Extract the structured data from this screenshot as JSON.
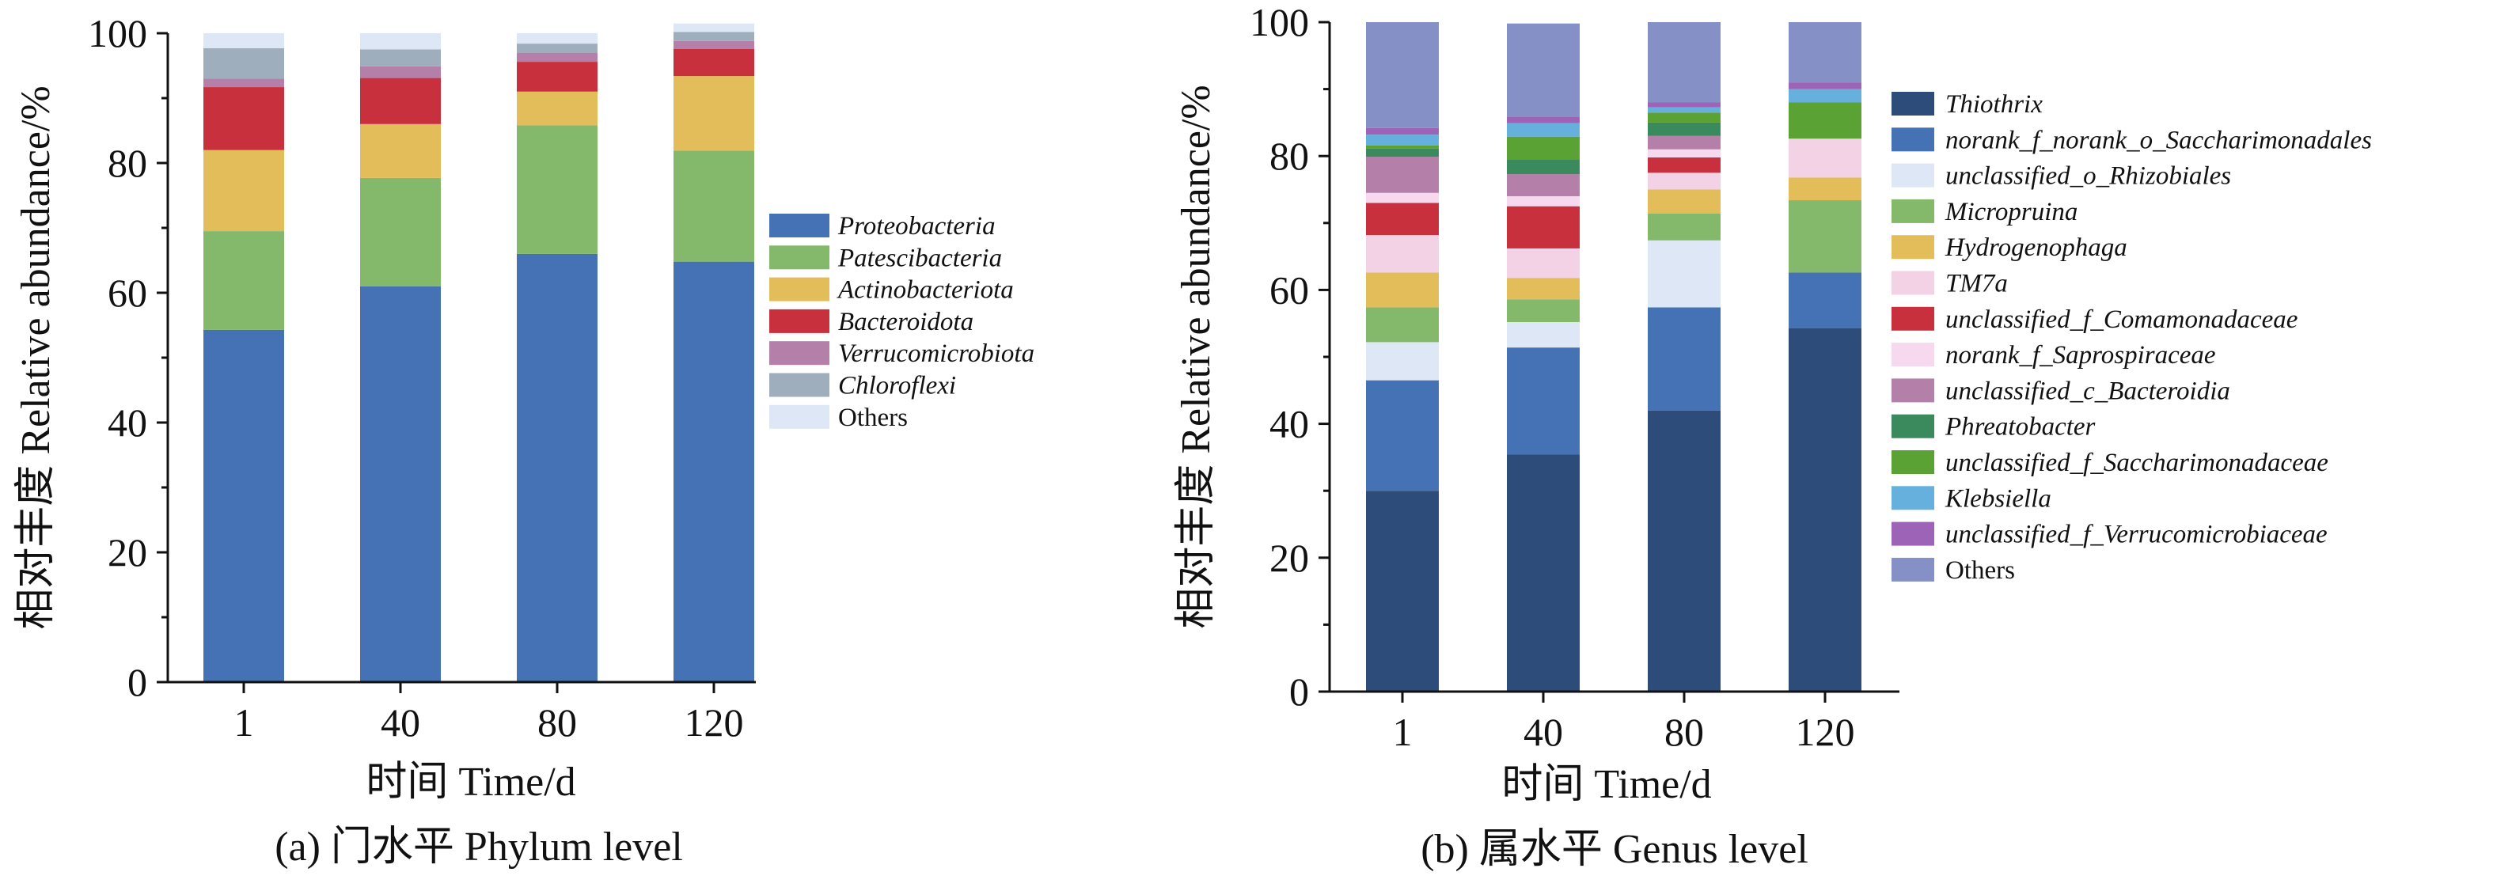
{
  "chart_data": [
    {
      "type": "bar",
      "stacked": true,
      "caption": "(a) 门水平 Phylum level",
      "xlabel": "时间 Time/d",
      "ylabel": "相对丰度 Relative abundance/%",
      "ylim": [
        0,
        100
      ],
      "yticks": [
        0,
        20,
        40,
        60,
        80,
        100
      ],
      "categories": [
        "1",
        "40",
        "80",
        "120"
      ],
      "legend_position": "right",
      "series": [
        {
          "name": "Proteobacteria",
          "italic": true,
          "color": "#4472b4",
          "values": [
            54.3,
            61.0,
            66.0,
            64.8
          ]
        },
        {
          "name": "Patescibacteria",
          "italic": true,
          "color": "#84b96c",
          "values": [
            15.2,
            16.7,
            19.8,
            17.1
          ]
        },
        {
          "name": "Actinobacteriota",
          "italic": true,
          "color": "#e2bd5a",
          "values": [
            12.5,
            8.3,
            5.2,
            11.5
          ]
        },
        {
          "name": "Bacteroidota",
          "italic": true,
          "color": "#c9303d",
          "values": [
            9.7,
            7.1,
            4.6,
            4.2
          ]
        },
        {
          "name": "Verrucomicrobiota",
          "italic": true,
          "color": "#b47fa8",
          "values": [
            1.3,
            1.8,
            1.4,
            1.2
          ]
        },
        {
          "name": "Chloroflexi",
          "italic": true,
          "color": "#9eaebd",
          "values": [
            4.7,
            2.6,
            1.4,
            1.4
          ]
        },
        {
          "name": "Others",
          "italic": false,
          "color": "#dde7f5",
          "values": [
            2.3,
            2.5,
            1.6,
            1.3
          ]
        }
      ]
    },
    {
      "type": "bar",
      "stacked": true,
      "caption": "(b) 属水平 Genus level",
      "xlabel": "时间 Time/d",
      "ylabel": "相对丰度 Relative abundance/%",
      "ylim": [
        0,
        100
      ],
      "yticks": [
        0,
        20,
        40,
        60,
        80,
        100
      ],
      "categories": [
        "1",
        "40",
        "80",
        "120"
      ],
      "legend_position": "right",
      "series": [
        {
          "name": "Thiothrix",
          "italic": true,
          "color": "#2e4c7a",
          "values": [
            30.0,
            35.4,
            42.0,
            54.3
          ]
        },
        {
          "name": "norank_f_norank_o_Saccharimonadales",
          "italic": true,
          "color": "#4472b4",
          "values": [
            16.5,
            16.0,
            15.4,
            8.3
          ]
        },
        {
          "name": "unclassified_o_Rhizobiales",
          "italic": true,
          "color": "#dde7f5",
          "values": [
            5.7,
            3.8,
            10.0,
            0.0
          ]
        },
        {
          "name": "Micropruina",
          "italic": true,
          "color": "#84b96c",
          "values": [
            5.2,
            3.4,
            4.0,
            10.8
          ]
        },
        {
          "name": "Hydrogenophaga",
          "italic": true,
          "color": "#e2bd5a",
          "values": [
            5.2,
            3.2,
            3.6,
            3.4
          ]
        },
        {
          "name": "TM7a",
          "italic": true,
          "color": "#f4d2e6",
          "values": [
            5.6,
            4.4,
            2.5,
            5.8
          ]
        },
        {
          "name": "unclassified_f_Comamonadaceae",
          "italic": true,
          "color": "#c9303d",
          "values": [
            4.8,
            6.3,
            2.3,
            0.0
          ]
        },
        {
          "name": "norank_f_Saprospiraceae",
          "italic": true,
          "color": "#f6d9ee",
          "values": [
            1.5,
            1.5,
            1.2,
            0.0
          ]
        },
        {
          "name": "unclassified_c_Bacteroidia",
          "italic": true,
          "color": "#b47fa8",
          "values": [
            5.4,
            3.3,
            2.0,
            0.0
          ]
        },
        {
          "name": "Phreatobacter",
          "italic": true,
          "color": "#3a8a5e",
          "values": [
            1.2,
            2.2,
            2.0,
            0.0
          ]
        },
        {
          "name": "unclassified_f_Saccharimonadaceae",
          "italic": true,
          "color": "#5ba234",
          "values": [
            0.5,
            3.4,
            1.5,
            5.4
          ]
        },
        {
          "name": "Klebsiella",
          "italic": true,
          "color": "#65b0dd",
          "values": [
            1.6,
            2.0,
            0.8,
            2.0
          ]
        },
        {
          "name": "unclassified_f_Verrucomicrobiaceae",
          "italic": true,
          "color": "#9c63b6",
          "values": [
            1.0,
            1.0,
            0.7,
            1.0
          ]
        },
        {
          "name": "Others",
          "italic": false,
          "color": "#8590c7",
          "values": [
            15.8,
            13.9,
            12.0,
            9.0
          ]
        }
      ]
    }
  ]
}
